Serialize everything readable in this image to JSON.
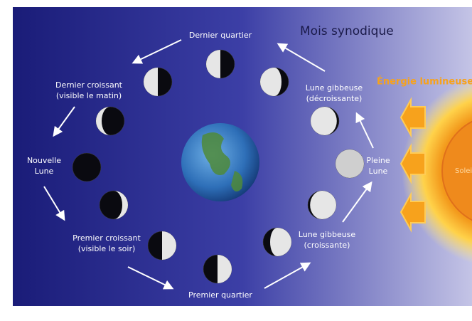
{
  "title": "Mois synodique",
  "energy_label": "Énergie lumineuse",
  "sun_label": "Soleil",
  "phases": [
    {
      "lines": [
        "Dernier quartier"
      ]
    },
    {
      "lines": [
        "Dernier croissant",
        "(visible le matin)"
      ]
    },
    {
      "lines": [
        "Nouvelle",
        "Lune"
      ]
    },
    {
      "lines": [
        "Premier croissant",
        "(visible le soir)"
      ]
    },
    {
      "lines": [
        "Premier quartier"
      ]
    },
    {
      "lines": [
        "Lune gibbeuse",
        "(croissante)"
      ]
    },
    {
      "lines": [
        "Pleine",
        "Lune"
      ]
    },
    {
      "lines": [
        "Lune gibbeuse",
        "(décroissante)"
      ]
    }
  ]
}
